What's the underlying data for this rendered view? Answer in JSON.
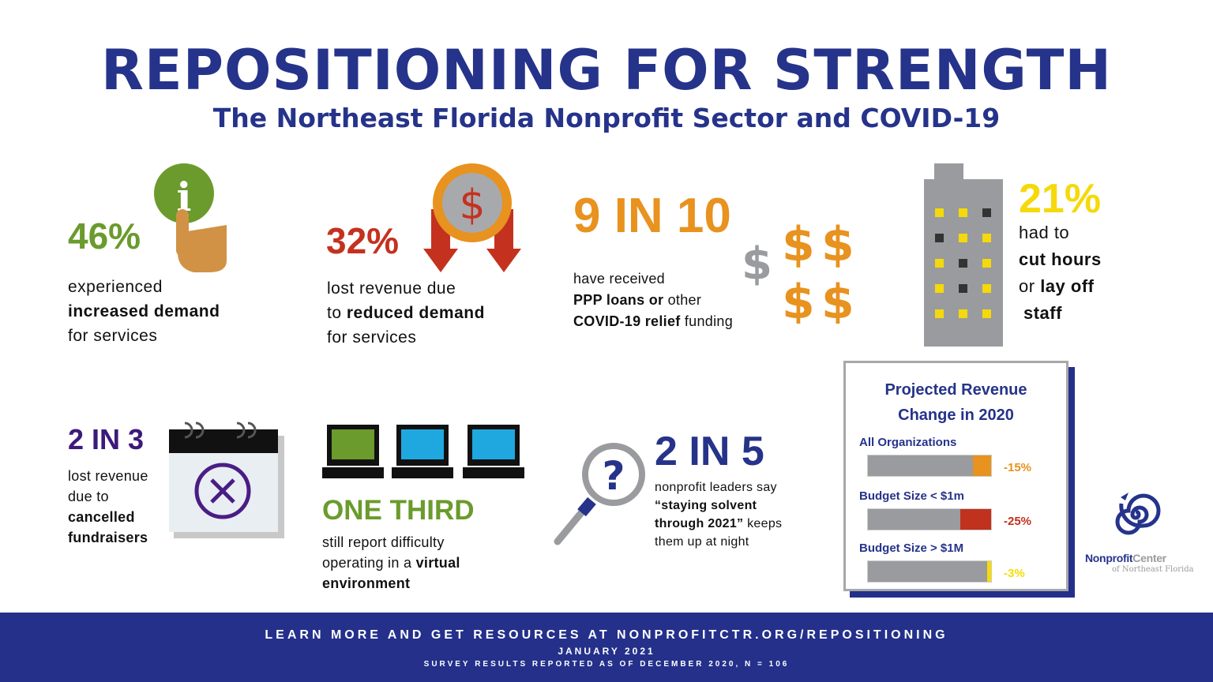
{
  "header": {
    "title": "REPOSITIONING FOR STRENGTH",
    "subtitle": "The Northeast Florida Nonprofit Sector and COVID-19"
  },
  "stats": [
    {
      "value": "46%",
      "lines": [
        [
          "experienced",
          ""
        ],
        [
          "",
          "increased demand"
        ],
        [
          "for services",
          ""
        ]
      ],
      "color": "#6a9b2c",
      "icon": "info-hand-icon"
    },
    {
      "value": "32%",
      "lines": [
        [
          "lost revenue due",
          ""
        ],
        [
          "to ",
          "reduced demand"
        ],
        [
          "for services",
          ""
        ]
      ],
      "color": "#c4321f",
      "icon": "dollar-coin-down-arrows-icon"
    },
    {
      "value": "9 IN 10",
      "lines": [
        [
          "have received",
          ""
        ],
        [
          "",
          "PPP loans or ",
          "other"
        ],
        [
          "",
          "COVID-19 relief",
          " funding"
        ]
      ],
      "color": "#e8921f",
      "icon": "dollar-signs-icon"
    },
    {
      "value": "21%",
      "lines": [
        [
          "had to",
          ""
        ],
        [
          "",
          "cut hours"
        ],
        [
          "or ",
          "lay off"
        ],
        [
          "",
          "staff"
        ]
      ],
      "color": "#f5d90a",
      "icon": "office-building-icon"
    },
    {
      "value": "2 IN 3",
      "lines": [
        [
          "lost revenue",
          ""
        ],
        [
          "due to",
          ""
        ],
        [
          "",
          "cancelled"
        ],
        [
          "",
          "fundraisers"
        ]
      ],
      "color": "#3d1a7a",
      "icon": "calendar-cancel-icon"
    },
    {
      "value": "ONE THIRD",
      "lines": [
        [
          "still report difficulty",
          ""
        ],
        [
          "operating in a ",
          "virtual"
        ],
        [
          "",
          "environment"
        ]
      ],
      "color": "#6a9b2c",
      "icon": "laptops-icon"
    },
    {
      "value": "2 IN 5",
      "lines": [
        [
          "nonprofit leaders say",
          ""
        ],
        [
          "",
          "“staying solvent"
        ],
        [
          "",
          "through 2021”",
          " keeps"
        ],
        [
          "them up at night",
          ""
        ]
      ],
      "color": "#25338a",
      "icon": "magnifier-question-icon"
    }
  ],
  "chart_data": {
    "type": "bar",
    "title": "Projected Revenue Change in 2020",
    "categories": [
      "All Organizations",
      "Budget Size < $1m",
      "Budget Size > $1M"
    ],
    "values": [
      -15,
      -25,
      -3
    ],
    "labels": [
      "-15%",
      "-25%",
      "-3%"
    ],
    "colors": [
      "#e8921f",
      "#c0311e",
      "#f7dc00"
    ]
  },
  "logo": {
    "name": "Nonprofit",
    "name2": "Center",
    "tagline": "of Northeast Florida"
  },
  "footer": {
    "line1": "LEARN MORE AND GET RESOURCES AT NONPROFITCTR.ORG/REPOSITIONING",
    "line2": "JANUARY 2021",
    "line3": "SURVEY RESULTS REPORTED AS OF DECEMBER 2020, N = 106"
  }
}
